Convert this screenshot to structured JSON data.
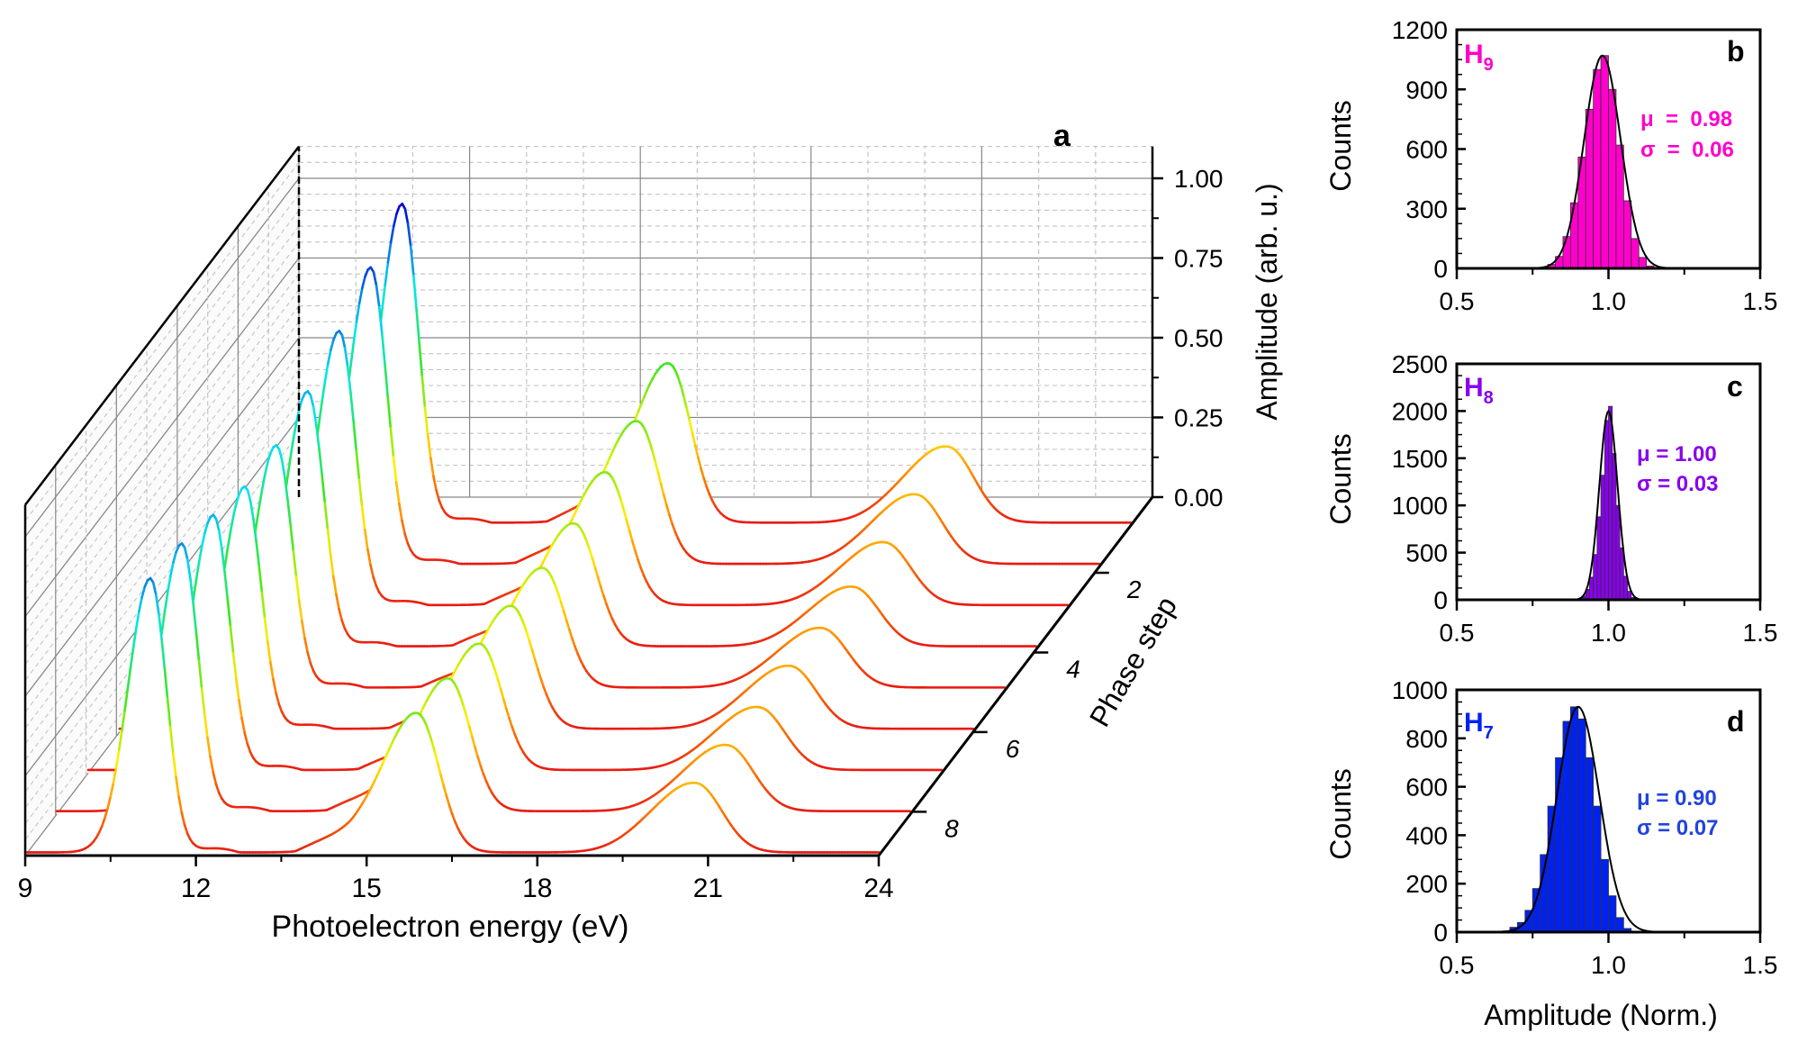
{
  "panel_a": {
    "letter": "a",
    "x_axis_label": "Photoelectron energy (eV)",
    "x_ticks": [
      "9",
      "12",
      "15",
      "18",
      "21",
      "24"
    ],
    "z_axis_label": "Amplitude (arb. u.)",
    "z_ticks": [
      "0.00",
      "0.25",
      "0.50",
      "0.75",
      "1.00"
    ],
    "y_axis_label": "Phase step",
    "y_ticks": [
      "2",
      "4",
      "6",
      "8"
    ]
  },
  "panel_b": {
    "letter": "b",
    "harmonic": "H",
    "harmonic_sub": "9",
    "mu_label": "μ  =  0.98",
    "sigma_label": "σ  =  0.06",
    "y_label": "Counts",
    "y_ticks": [
      "0",
      "300",
      "600",
      "900",
      "1200"
    ],
    "x_ticks": [
      "0.5",
      "1.0",
      "1.5"
    ]
  },
  "panel_c": {
    "letter": "c",
    "harmonic": "H",
    "harmonic_sub": "8",
    "mu_label": "μ = 1.00",
    "sigma_label": "σ = 0.03",
    "y_label": "Counts",
    "y_ticks": [
      "0",
      "500",
      "1000",
      "1500",
      "2000",
      "2500"
    ],
    "x_ticks": [
      "0.5",
      "1.0",
      "1.5"
    ]
  },
  "panel_d": {
    "letter": "d",
    "harmonic": "H",
    "harmonic_sub": "7",
    "mu_label": "μ = 0.90",
    "sigma_label": "σ = 0.07",
    "y_label": "Counts",
    "y_ticks": [
      "0",
      "200",
      "400",
      "600",
      "800",
      "1000"
    ],
    "x_ticks": [
      "0.5",
      "1.0",
      "1.5"
    ],
    "x_label": "Amplitude (Norm.)"
  },
  "chart_data": [
    {
      "type": "line",
      "title": "a",
      "xlabel": "Photoelectron energy (eV)",
      "ylabel": "Phase step",
      "zlabel": "Amplitude (arb. u.)",
      "xlim": [
        9,
        24
      ],
      "zlim": [
        0,
        1.1
      ],
      "ylim": [
        1,
        9
      ],
      "peaks_eV": [
        11.2,
        15.9,
        20.8
      ],
      "series": [
        {
          "name": "Phase step 1",
          "peak_amplitudes": [
            1.0,
            0.48,
            0.23
          ]
        },
        {
          "name": "Phase step 2",
          "peak_amplitudes": [
            0.93,
            0.43,
            0.21
          ]
        },
        {
          "name": "Phase step 3",
          "peak_amplitudes": [
            0.86,
            0.4,
            0.19
          ]
        },
        {
          "name": "Phase step 4",
          "peak_amplitudes": [
            0.8,
            0.37,
            0.18
          ]
        },
        {
          "name": "Phase step 5",
          "peak_amplitudes": [
            0.76,
            0.36,
            0.18
          ]
        },
        {
          "name": "Phase step 6",
          "peak_amplitudes": [
            0.76,
            0.37,
            0.19
          ]
        },
        {
          "name": "Phase step 7",
          "peak_amplitudes": [
            0.8,
            0.38,
            0.19
          ]
        },
        {
          "name": "Phase step 8",
          "peak_amplitudes": [
            0.84,
            0.4,
            0.2
          ]
        },
        {
          "name": "Phase step 9",
          "peak_amplitudes": [
            0.86,
            0.42,
            0.21
          ]
        }
      ]
    },
    {
      "type": "bar",
      "title": "H9",
      "xlabel": "Amplitude (Norm.)",
      "ylabel": "Counts",
      "xlim": [
        0.5,
        1.5
      ],
      "ylim": [
        0,
        1200
      ],
      "bin_width": 0.025,
      "bin_centers": [
        0.7875,
        0.8125,
        0.8375,
        0.8625,
        0.8875,
        0.9125,
        0.9375,
        0.9625,
        0.9875,
        1.0125,
        1.0375,
        1.0625,
        1.0875,
        1.1125,
        1.1375
      ],
      "values": [
        4,
        20,
        60,
        160,
        330,
        560,
        800,
        1000,
        1070,
        900,
        620,
        340,
        150,
        55,
        12
      ],
      "fit_mean": 0.98,
      "fit_sigma": 0.06,
      "fit_peak": 1070,
      "color": "#ff00cc"
    },
    {
      "type": "bar",
      "title": "H8",
      "xlabel": "Amplitude (Norm.)",
      "ylabel": "Counts",
      "xlim": [
        0.5,
        1.5
      ],
      "ylim": [
        0,
        2500
      ],
      "bin_width": 0.0125,
      "bin_centers": [
        0.90625,
        0.91875,
        0.93125,
        0.94375,
        0.95625,
        0.96875,
        0.98125,
        0.99375,
        1.00625,
        1.01875,
        1.03125,
        1.04375,
        1.05625,
        1.06875,
        1.08125
      ],
      "values": [
        10,
        40,
        110,
        240,
        480,
        880,
        1320,
        1900,
        2050,
        1550,
        1000,
        550,
        250,
        90,
        25
      ],
      "fit_mean": 1.0,
      "fit_sigma": 0.03,
      "fit_peak": 2000,
      "color": "#8800ee"
    },
    {
      "type": "bar",
      "title": "H7",
      "xlabel": "Amplitude (Norm.)",
      "ylabel": "Counts",
      "xlim": [
        0.5,
        1.5
      ],
      "ylim": [
        0,
        1000
      ],
      "bin_width": 0.025,
      "bin_centers": [
        0.6625,
        0.6875,
        0.7125,
        0.7375,
        0.7625,
        0.7875,
        0.8125,
        0.8375,
        0.8625,
        0.8875,
        0.9125,
        0.9375,
        0.9625,
        0.9875,
        1.0125,
        1.0375,
        1.0625
      ],
      "values": [
        5,
        20,
        40,
        90,
        180,
        320,
        520,
        720,
        870,
        930,
        880,
        720,
        520,
        300,
        150,
        60,
        15
      ],
      "fit_mean": 0.9,
      "fit_sigma": 0.07,
      "fit_peak": 930,
      "color": "#0022ee"
    }
  ]
}
